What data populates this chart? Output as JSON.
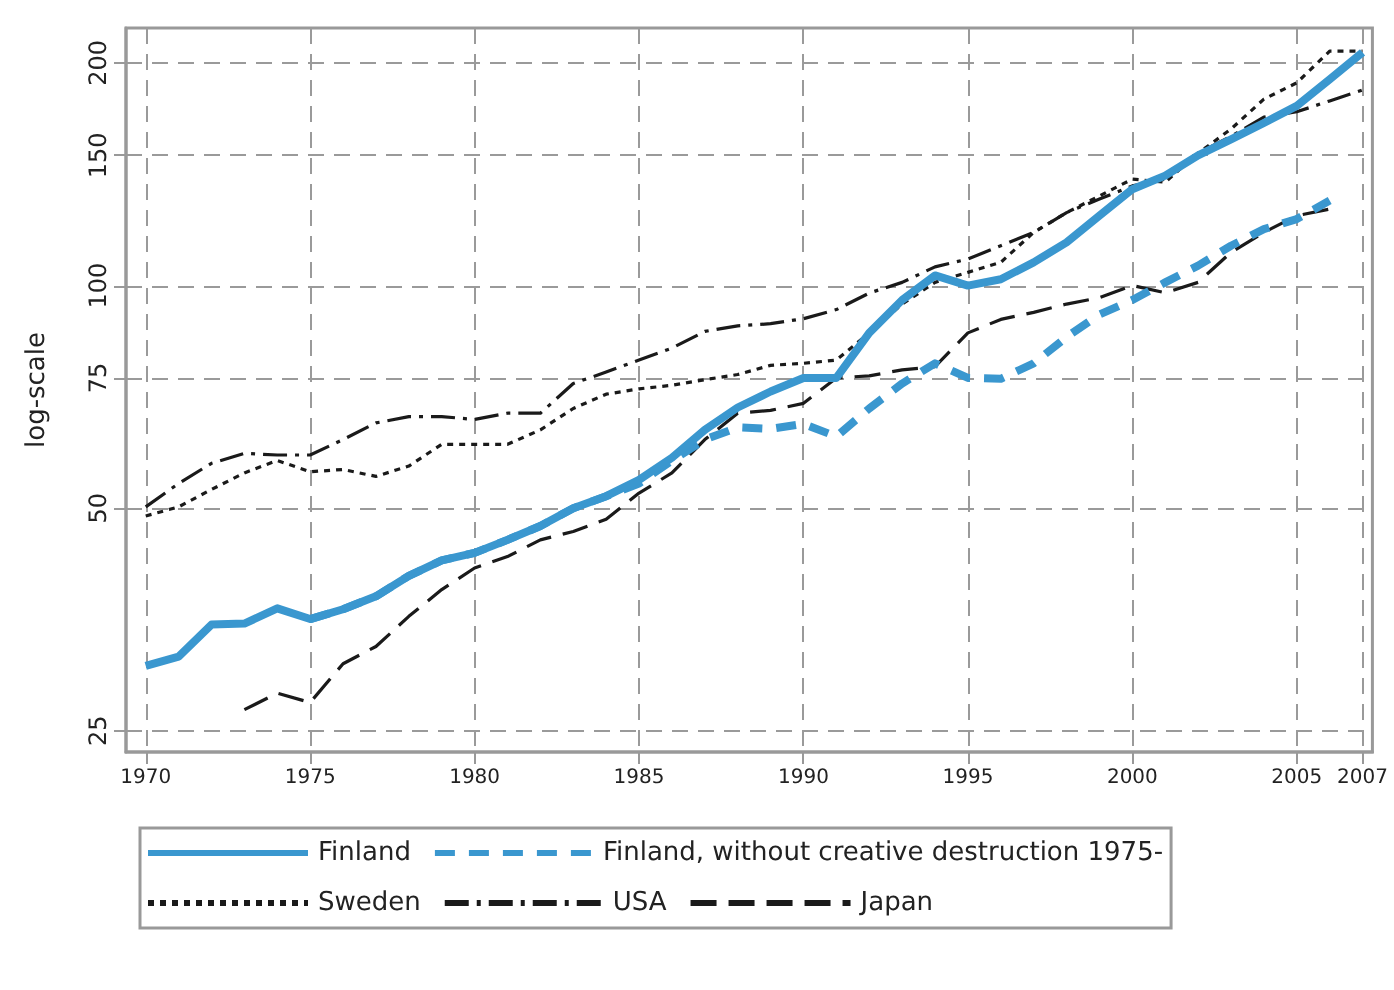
{
  "chart_data": {
    "type": "line",
    "ylabel": "log-scale",
    "log": true,
    "grid": true,
    "legend": "bottom",
    "marker": "none",
    "xlim": [
      1969.4,
      2007.3
    ],
    "xticks": [
      1970,
      1975,
      1980,
      1985,
      1990,
      1995,
      2000,
      2005,
      2007
    ],
    "ylim": [
      23.4,
      223
    ],
    "yticks": [
      25,
      50,
      75,
      100,
      150,
      200
    ],
    "x": [
      1970,
      1971,
      1972,
      1973,
      1974,
      1975,
      1976,
      1977,
      1978,
      1979,
      1980,
      1981,
      1982,
      1983,
      1984,
      1985,
      1986,
      1987,
      1988,
      1989,
      1990,
      1991,
      1992,
      1993,
      1994,
      1995,
      1996,
      1997,
      1998,
      1999,
      2000,
      2001,
      2002,
      2003,
      2004,
      2005,
      2006,
      2007
    ],
    "series": [
      {
        "name": "Finland",
        "color": "#3a97cf",
        "line_style": "solid",
        "values": [
          30.6,
          31.5,
          34.8,
          34.9,
          36.6,
          35.4,
          36.5,
          38,
          40.5,
          42.5,
          43.5,
          45.3,
          47.3,
          50,
          51.9,
          54.6,
          58.5,
          63.8,
          68.4,
          71.9,
          75,
          75,
          86.3,
          95.6,
          103.2,
          100,
          102,
          107.5,
          114.4,
          124.3,
          135,
          140.8,
          150,
          157.6,
          165.9,
          175,
          190,
          206.7
        ]
      },
      {
        "name": "Finland, without creative destruction 1975-",
        "color": "#3a97cf",
        "line_style": "dashed",
        "values": [
          null,
          null,
          null,
          null,
          null,
          35.4,
          36.5,
          38,
          40.5,
          42.5,
          43.5,
          45.3,
          47.3,
          50,
          51.9,
          54,
          58,
          61.9,
          64.3,
          64,
          65,
          62.5,
          68.2,
          73.7,
          78.5,
          75,
          74.8,
          78.5,
          85.2,
          91.4,
          95.6,
          101,
          106.4,
          113.2,
          119.2,
          123,
          130.3,
          null
        ]
      },
      {
        "name": "Sweden",
        "color": "#1a1a1a",
        "line_style": "dotted",
        "values": [
          48.8,
          50.2,
          53,
          55.8,
          58,
          56,
          56.4,
          55.2,
          57,
          61,
          61,
          61,
          63.8,
          68.2,
          71.3,
          72.5,
          73.3,
          74.6,
          75.8,
          78,
          78.5,
          79.3,
          86.3,
          94.4,
          101,
          104.2,
          107.5,
          118,
          125.5,
          132.2,
          139.3,
          138,
          151,
          162.8,
          178.7,
          188,
          207.5,
          207.5
        ]
      },
      {
        "name": "USA",
        "color": "#1a1a1a",
        "line_style": "dashdot",
        "values": [
          50.2,
          54,
          57.5,
          59.3,
          59,
          59,
          61.9,
          65.2,
          66.5,
          66.5,
          65.9,
          67.2,
          67.2,
          73.7,
          76.4,
          79.3,
          82.3,
          86.7,
          88.2,
          88.8,
          90.2,
          92.8,
          97.7,
          101,
          106,
          108.6,
          113.2,
          118,
          125.5,
          130.9,
          136.4,
          139.3,
          151,
          159.1,
          169,
          171.8,
          177.7,
          183.9
        ]
      },
      {
        "name": "Japan",
        "color": "#1a1a1a",
        "line_style": "dashed",
        "values": [
          null,
          null,
          null,
          26.7,
          28.1,
          27.3,
          30.8,
          32.5,
          35.7,
          38.8,
          41.5,
          43,
          45.3,
          46.5,
          48.3,
          52.4,
          55.8,
          61.9,
          67.2,
          67.8,
          69.3,
          75,
          75.5,
          76.9,
          77.7,
          86.3,
          90,
          92,
          94.4,
          96.3,
          100,
          97.8,
          101,
          110.9,
          118,
          124.3,
          126.9,
          null
        ]
      }
    ]
  }
}
